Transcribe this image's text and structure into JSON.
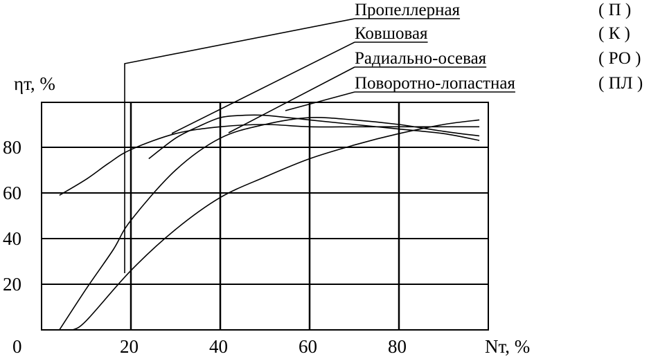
{
  "chart_data": {
    "type": "line",
    "xlabel": "Nт, %",
    "ylabel": "ηт, %",
    "xlim": [
      0,
      100
    ],
    "ylim": [
      0,
      100
    ],
    "x_ticks": [
      "0",
      "20",
      "40",
      "60",
      "80"
    ],
    "y_ticks": [
      "0",
      "20",
      "40",
      "60",
      "80"
    ],
    "grid": true,
    "legend_position": "top-right",
    "series": [
      {
        "name": "Пропеллерная",
        "code": "( П )",
        "x": [
          4,
          10,
          16,
          20,
          30,
          40,
          50,
          60,
          70,
          80,
          90,
          98
        ],
        "y": [
          0,
          18,
          35,
          48,
          70,
          84,
          90,
          93,
          92,
          90,
          87,
          85
        ]
      },
      {
        "name": "Ковшовая",
        "code": "( К )",
        "x": [
          4,
          10,
          15,
          20,
          30,
          40,
          50,
          60,
          70,
          80,
          90,
          98
        ],
        "y": [
          59,
          66,
          73,
          79,
          86,
          89,
          90,
          89,
          89,
          89,
          89,
          89
        ]
      },
      {
        "name": "Радиально-осевая",
        "code": "( РО )",
        "x": [
          24,
          30,
          35,
          40,
          45,
          50,
          60,
          70,
          80,
          90,
          98
        ],
        "y": [
          75,
          84,
          89,
          93,
          94,
          94,
          92,
          90,
          88,
          86,
          83
        ]
      },
      {
        "name": "Поворотно-лопастная",
        "code": "( ПЛ )",
        "x": [
          7,
          10,
          20,
          30,
          40,
          50,
          60,
          70,
          80,
          90,
          98
        ],
        "y": [
          0,
          4,
          26,
          44,
          58,
          67,
          75,
          81,
          86,
          90,
          92
        ]
      }
    ]
  }
}
